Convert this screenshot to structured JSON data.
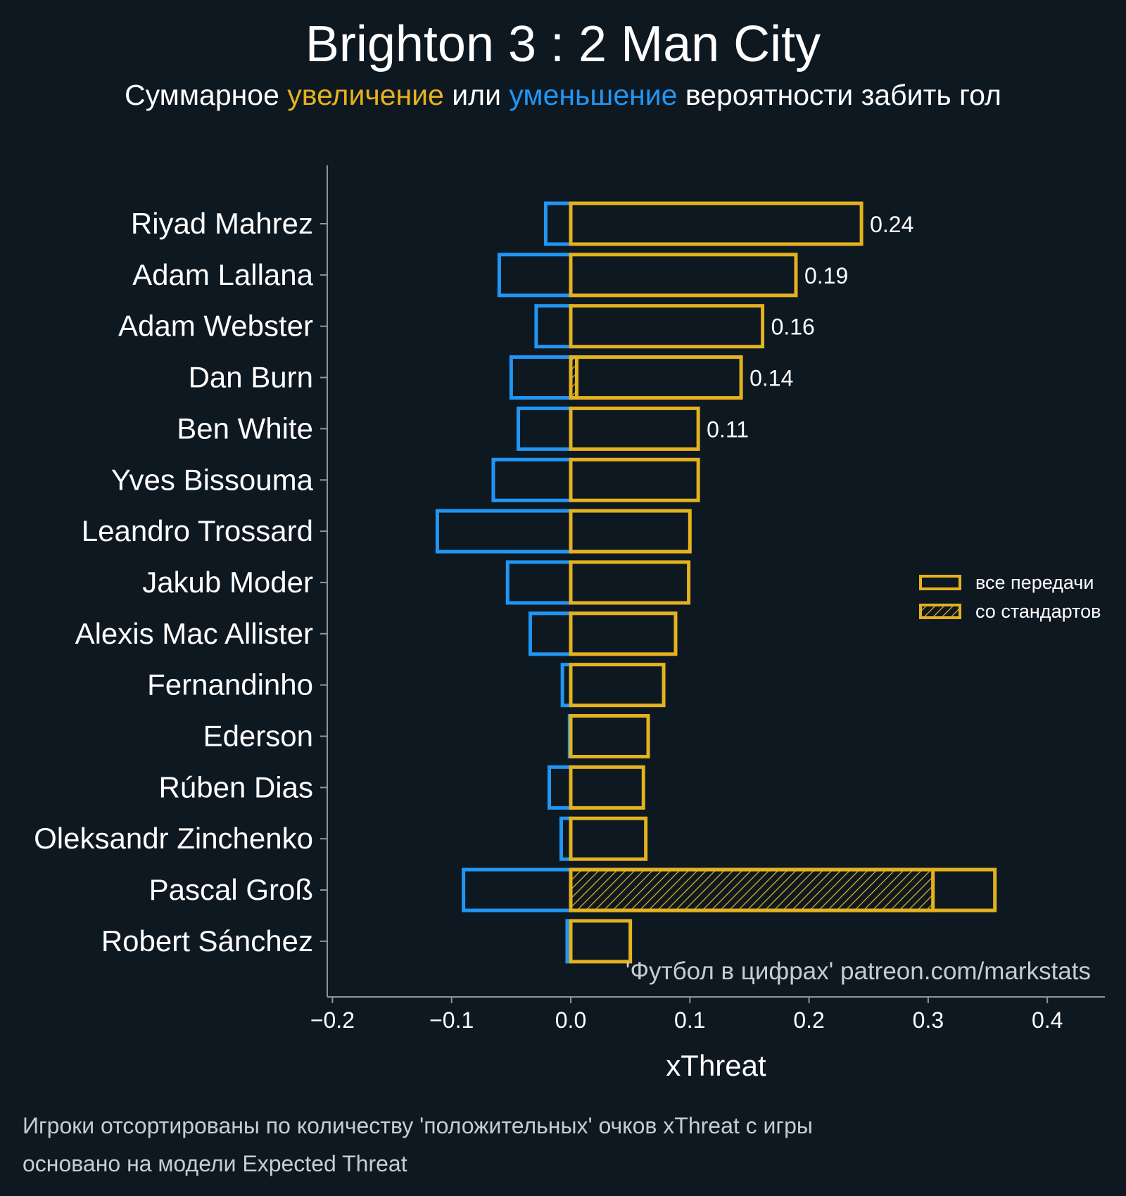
{
  "title": "Brighton 3 : 2 Man City",
  "subtitle": {
    "part1": "Суммарное ",
    "positive_word": "увеличение",
    "part2": " или ",
    "negative_word": "уменьшение",
    "part3": " вероятности забить гол"
  },
  "watermark": "'Футбол в цифрах' patreon.com/markstats",
  "footer_lines": [
    "Игроки отсортированы по количеству 'положительных' очков xThreat с игры",
    "основано на модели Expected Threat"
  ],
  "colors": {
    "background": "#0e1821",
    "positive": "#e4b21e",
    "negative": "#2196f3",
    "axis": "#8a969e",
    "text": "#ffffff"
  },
  "chart_data": {
    "type": "bar",
    "orientation": "horizontal",
    "xlabel": "xThreat",
    "xlim": [
      -0.205,
      0.45
    ],
    "xticks": [
      -0.2,
      -0.1,
      0.0,
      0.1,
      0.2,
      0.3,
      0.4
    ],
    "xtick_labels": [
      "−0.2",
      "−0.1",
      "0.0",
      "0.1",
      "0.2",
      "0.3",
      "0.4"
    ],
    "categories": [
      "Riyad Mahrez",
      "Adam Lallana",
      "Adam Webster",
      "Dan Burn",
      "Ben White",
      "Yves Bissouma",
      "Leandro Trossard",
      "Jakub Moder",
      "Alexis Mac Allister",
      "Fernandinho",
      "Ederson",
      "Rúben Dias",
      "Oleksandr Zinchenko",
      "Pascal Groß",
      "Robert Sánchez"
    ],
    "series": [
      {
        "name": "все передачи",
        "role": "positive",
        "values": [
          0.244,
          0.189,
          0.161,
          0.143,
          0.107,
          0.107,
          0.1,
          0.099,
          0.088,
          0.078,
          0.065,
          0.061,
          0.063,
          0.356,
          0.05
        ]
      },
      {
        "name": "со стандартов",
        "role": "positive-hatched",
        "values": [
          0,
          0,
          0,
          0.005,
          0,
          0,
          0,
          0,
          0,
          0,
          0,
          0,
          0,
          0.304,
          0
        ]
      },
      {
        "role": "negative",
        "values": [
          -0.021,
          -0.06,
          -0.029,
          -0.05,
          -0.044,
          -0.065,
          -0.112,
          -0.053,
          -0.034,
          -0.007,
          -0.001,
          -0.018,
          -0.008,
          -0.09,
          -0.003
        ]
      }
    ],
    "value_labels": [
      "0.24",
      "0.19",
      "0.16",
      "0.14",
      "0.11",
      "",
      "",
      "",
      "",
      "",
      "",
      "",
      "",
      "",
      ""
    ],
    "legend": {
      "position": "right",
      "entries": [
        "все передачи",
        "со стандартов"
      ]
    }
  }
}
